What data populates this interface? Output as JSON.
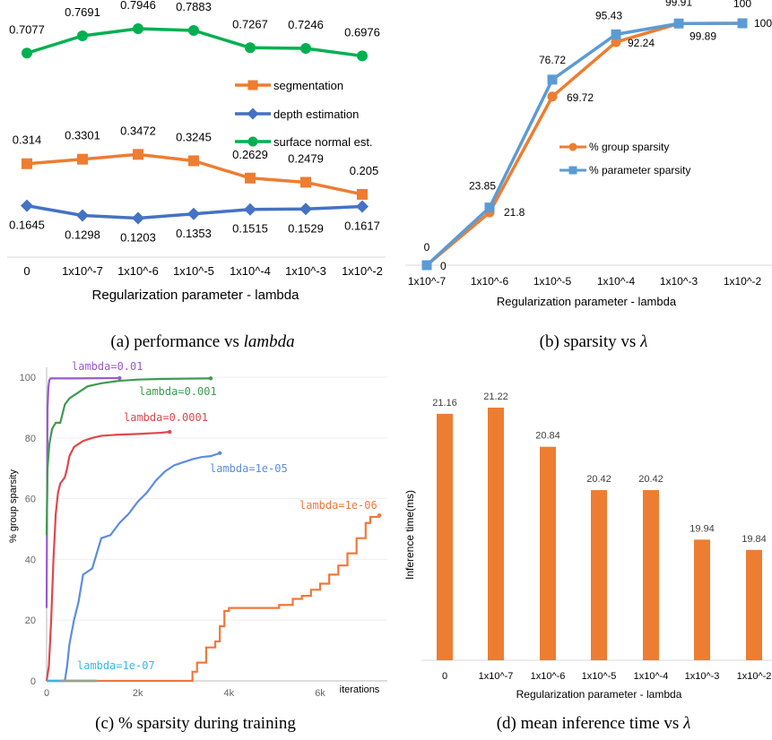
{
  "captions": {
    "a_prefix": "(a) performance vs ",
    "a_symbol": "lambda",
    "b_prefix": "(b) sparsity vs ",
    "b_symbol": "λ",
    "c": "(c) % sparsity during training",
    "d_prefix": "(d) mean inference time vs ",
    "d_symbol": "λ"
  },
  "chart_data": [
    {
      "id": "a",
      "type": "line",
      "categories": [
        "0",
        "1x10^-7",
        "1x10^-6",
        "1x10^-5",
        "1x10^-4",
        "1x10^-3",
        "1x10^-2"
      ],
      "xlabel": "Regularization parameter - lambda",
      "ylabel": "",
      "legend_position": "right",
      "series": [
        {
          "name": "segmentation",
          "color": "#ED7D31",
          "marker": "square",
          "values": [
            0.314,
            0.3301,
            0.3472,
            0.3245,
            0.2629,
            0.2479,
            0.205
          ],
          "labels": [
            "0.314",
            "0.3301",
            "0.3472",
            "0.3245",
            "0.2629",
            "0.2479",
            "0.205"
          ]
        },
        {
          "name": "depth estimation",
          "color": "#4472C4",
          "marker": "diamond",
          "values": [
            0.1645,
            0.1298,
            0.1203,
            0.1353,
            0.1515,
            0.1529,
            0.1617
          ],
          "labels": [
            "0.1645",
            "0.1298",
            "0.1203",
            "0.1353",
            "0.1515",
            "0.1529",
            "0.1617"
          ]
        },
        {
          "name": "surface normal est.",
          "color": "#00B050",
          "marker": "circle",
          "values": [
            0.7077,
            0.7691,
            0.7946,
            0.7883,
            0.7267,
            0.7246,
            0.6976
          ],
          "labels": [
            "0.7077",
            "0.7691",
            "0.7946",
            "0.7883",
            "0.7267",
            "0.7246",
            "0.6976"
          ]
        }
      ]
    },
    {
      "id": "b",
      "type": "line",
      "categories": [
        "1x10^-7",
        "1x10^-6",
        "1x10^-5",
        "1x10^-4",
        "1x10^-3",
        "1x10^-2"
      ],
      "xlabel": "Regularization parameter - lambda",
      "ylabel": "",
      "legend_position": "right",
      "series": [
        {
          "name": "% group sparsity",
          "color": "#ED7D31",
          "marker": "circle",
          "values": [
            0,
            21.8,
            69.72,
            92.24,
            99.89,
            100
          ],
          "labels": [
            "0",
            "21.8",
            "69.72",
            "92.24",
            "99.89",
            ""
          ]
        },
        {
          "name": "% parameter sparsity",
          "color": "#5B9BD5",
          "marker": "square",
          "values": [
            0,
            23.85,
            76.72,
            95.43,
            99.91,
            100
          ],
          "labels": [
            "0",
            "23.85",
            "76.72",
            "95.43",
            "99.91",
            "100"
          ]
        }
      ],
      "extra_labels": [
        "100"
      ]
    },
    {
      "id": "c",
      "type": "line",
      "xlabel": "iterations",
      "ylabel": "% group sparsity",
      "ylim": [
        0,
        100
      ],
      "xlim": [
        0,
        7400
      ],
      "xticks": [
        "0",
        "2k",
        "4k",
        "6k"
      ],
      "xtick_values": [
        0,
        2000,
        4000,
        6000
      ],
      "yticks": [
        "0",
        "20",
        "40",
        "60",
        "80",
        "100"
      ],
      "series": [
        {
          "name": "lambda=0.01",
          "color": "#9B59D0",
          "x": [
            0,
            10,
            20,
            40,
            60,
            80,
            100,
            600,
            1600
          ],
          "y": [
            24,
            60,
            90,
            97,
            99,
            99.5,
            99.6,
            99.6,
            99.7
          ]
        },
        {
          "name": "lambda=0.001",
          "color": "#3E9A4F",
          "x": [
            0,
            20,
            60,
            120,
            200,
            300,
            400,
            500,
            700,
            900,
            1200,
            1600,
            2000,
            2500,
            3000,
            3600
          ],
          "y": [
            48,
            70,
            78,
            83,
            85,
            85,
            91,
            93,
            95,
            97,
            98,
            98.8,
            99.2,
            99.4,
            99.5,
            99.6
          ]
        },
        {
          "name": "lambda=0.0001",
          "color": "#E0474C",
          "x": [
            0,
            50,
            100,
            150,
            200,
            250,
            300,
            350,
            400,
            450,
            500,
            600,
            700,
            800,
            1000,
            1200,
            1500,
            2000,
            2500,
            2700
          ],
          "y": [
            0,
            5,
            20,
            40,
            55,
            62,
            65,
            66,
            67,
            70,
            74,
            77,
            78,
            79,
            80,
            80.7,
            81,
            81.3,
            81.7,
            82
          ]
        },
        {
          "name": "lambda=1e-05",
          "color": "#5B8DE0",
          "x": [
            0,
            400,
            450,
            500,
            600,
            700,
            800,
            1000,
            1200,
            1400,
            1600,
            1800,
            2000,
            2200,
            2400,
            2600,
            2800,
            3000,
            3200,
            3400,
            3600,
            3800
          ],
          "y": [
            0,
            0,
            5,
            12,
            20,
            26,
            35,
            37,
            47,
            48,
            52,
            55,
            59,
            62,
            66,
            69,
            71,
            72,
            73,
            73.7,
            74,
            75
          ]
        },
        {
          "name": "lambda=1e-06",
          "color": "#F0783C",
          "x": [
            0,
            3100,
            3200,
            3300,
            3500,
            3700,
            3800,
            3900,
            4000,
            4200,
            4500,
            4800,
            5100,
            5400,
            5600,
            5800,
            6000,
            6200,
            6400,
            6600,
            6800,
            7000,
            7100,
            7300
          ],
          "y": [
            0,
            0,
            3,
            6,
            11,
            13,
            18,
            23,
            24,
            24,
            24,
            24,
            25,
            27,
            28,
            30,
            32,
            35,
            38,
            42,
            47,
            52,
            54,
            54.5
          ]
        },
        {
          "name": "lambda=1e-07",
          "color": "#3CB4E6",
          "x": [
            0,
            1100
          ],
          "y": [
            0,
            0
          ]
        }
      ]
    },
    {
      "id": "d",
      "type": "bar",
      "categories": [
        "0",
        "1x10^-7",
        "1x10^-6",
        "1x10^-5",
        "1x10^-4",
        "1x10^-3",
        "1x10^-2"
      ],
      "values": [
        21.16,
        21.22,
        20.84,
        20.42,
        20.42,
        19.94,
        19.84
      ],
      "labels": [
        "21.16",
        "21.22",
        "20.84",
        "20.42",
        "20.42",
        "19.94",
        "19.84"
      ],
      "xlabel": "Regularization parameter - lambda",
      "ylabel": "Inference time(ms)",
      "ylim": [
        18.77,
        21.45
      ],
      "color": "#ED7D31"
    }
  ]
}
